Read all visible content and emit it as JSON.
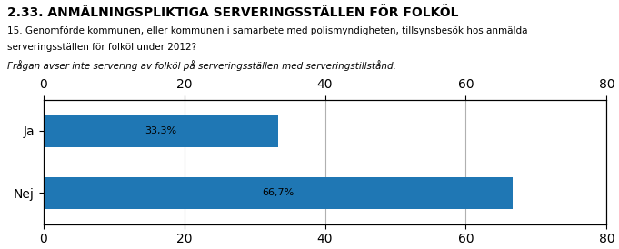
{
  "chart_data": {
    "type": "bar",
    "orientation": "horizontal",
    "title": "2.33. ANMÄLNINGSPLIKTIGA SERVERINGSSTÄLLEN FÖR FOLKÖL",
    "subtitle": [
      "15. Genomförde kommunen, eller kommunen i samarbete med polismyndigheten, tillsynsbesök hos anmälda",
      "serveringsställen för folköl under 2012?",
      "Frågan avser inte servering av folköl på serveringsställen med serveringstillstånd."
    ],
    "categories": [
      "Nej",
      "Ja"
    ],
    "values": [
      66.7,
      33.3
    ],
    "value_labels": [
      "66,7%",
      "33,3%"
    ],
    "data_labels": true,
    "xlim": [
      0,
      80
    ],
    "xticks": [
      0,
      20,
      40,
      60,
      80
    ],
    "grid": true
  }
}
